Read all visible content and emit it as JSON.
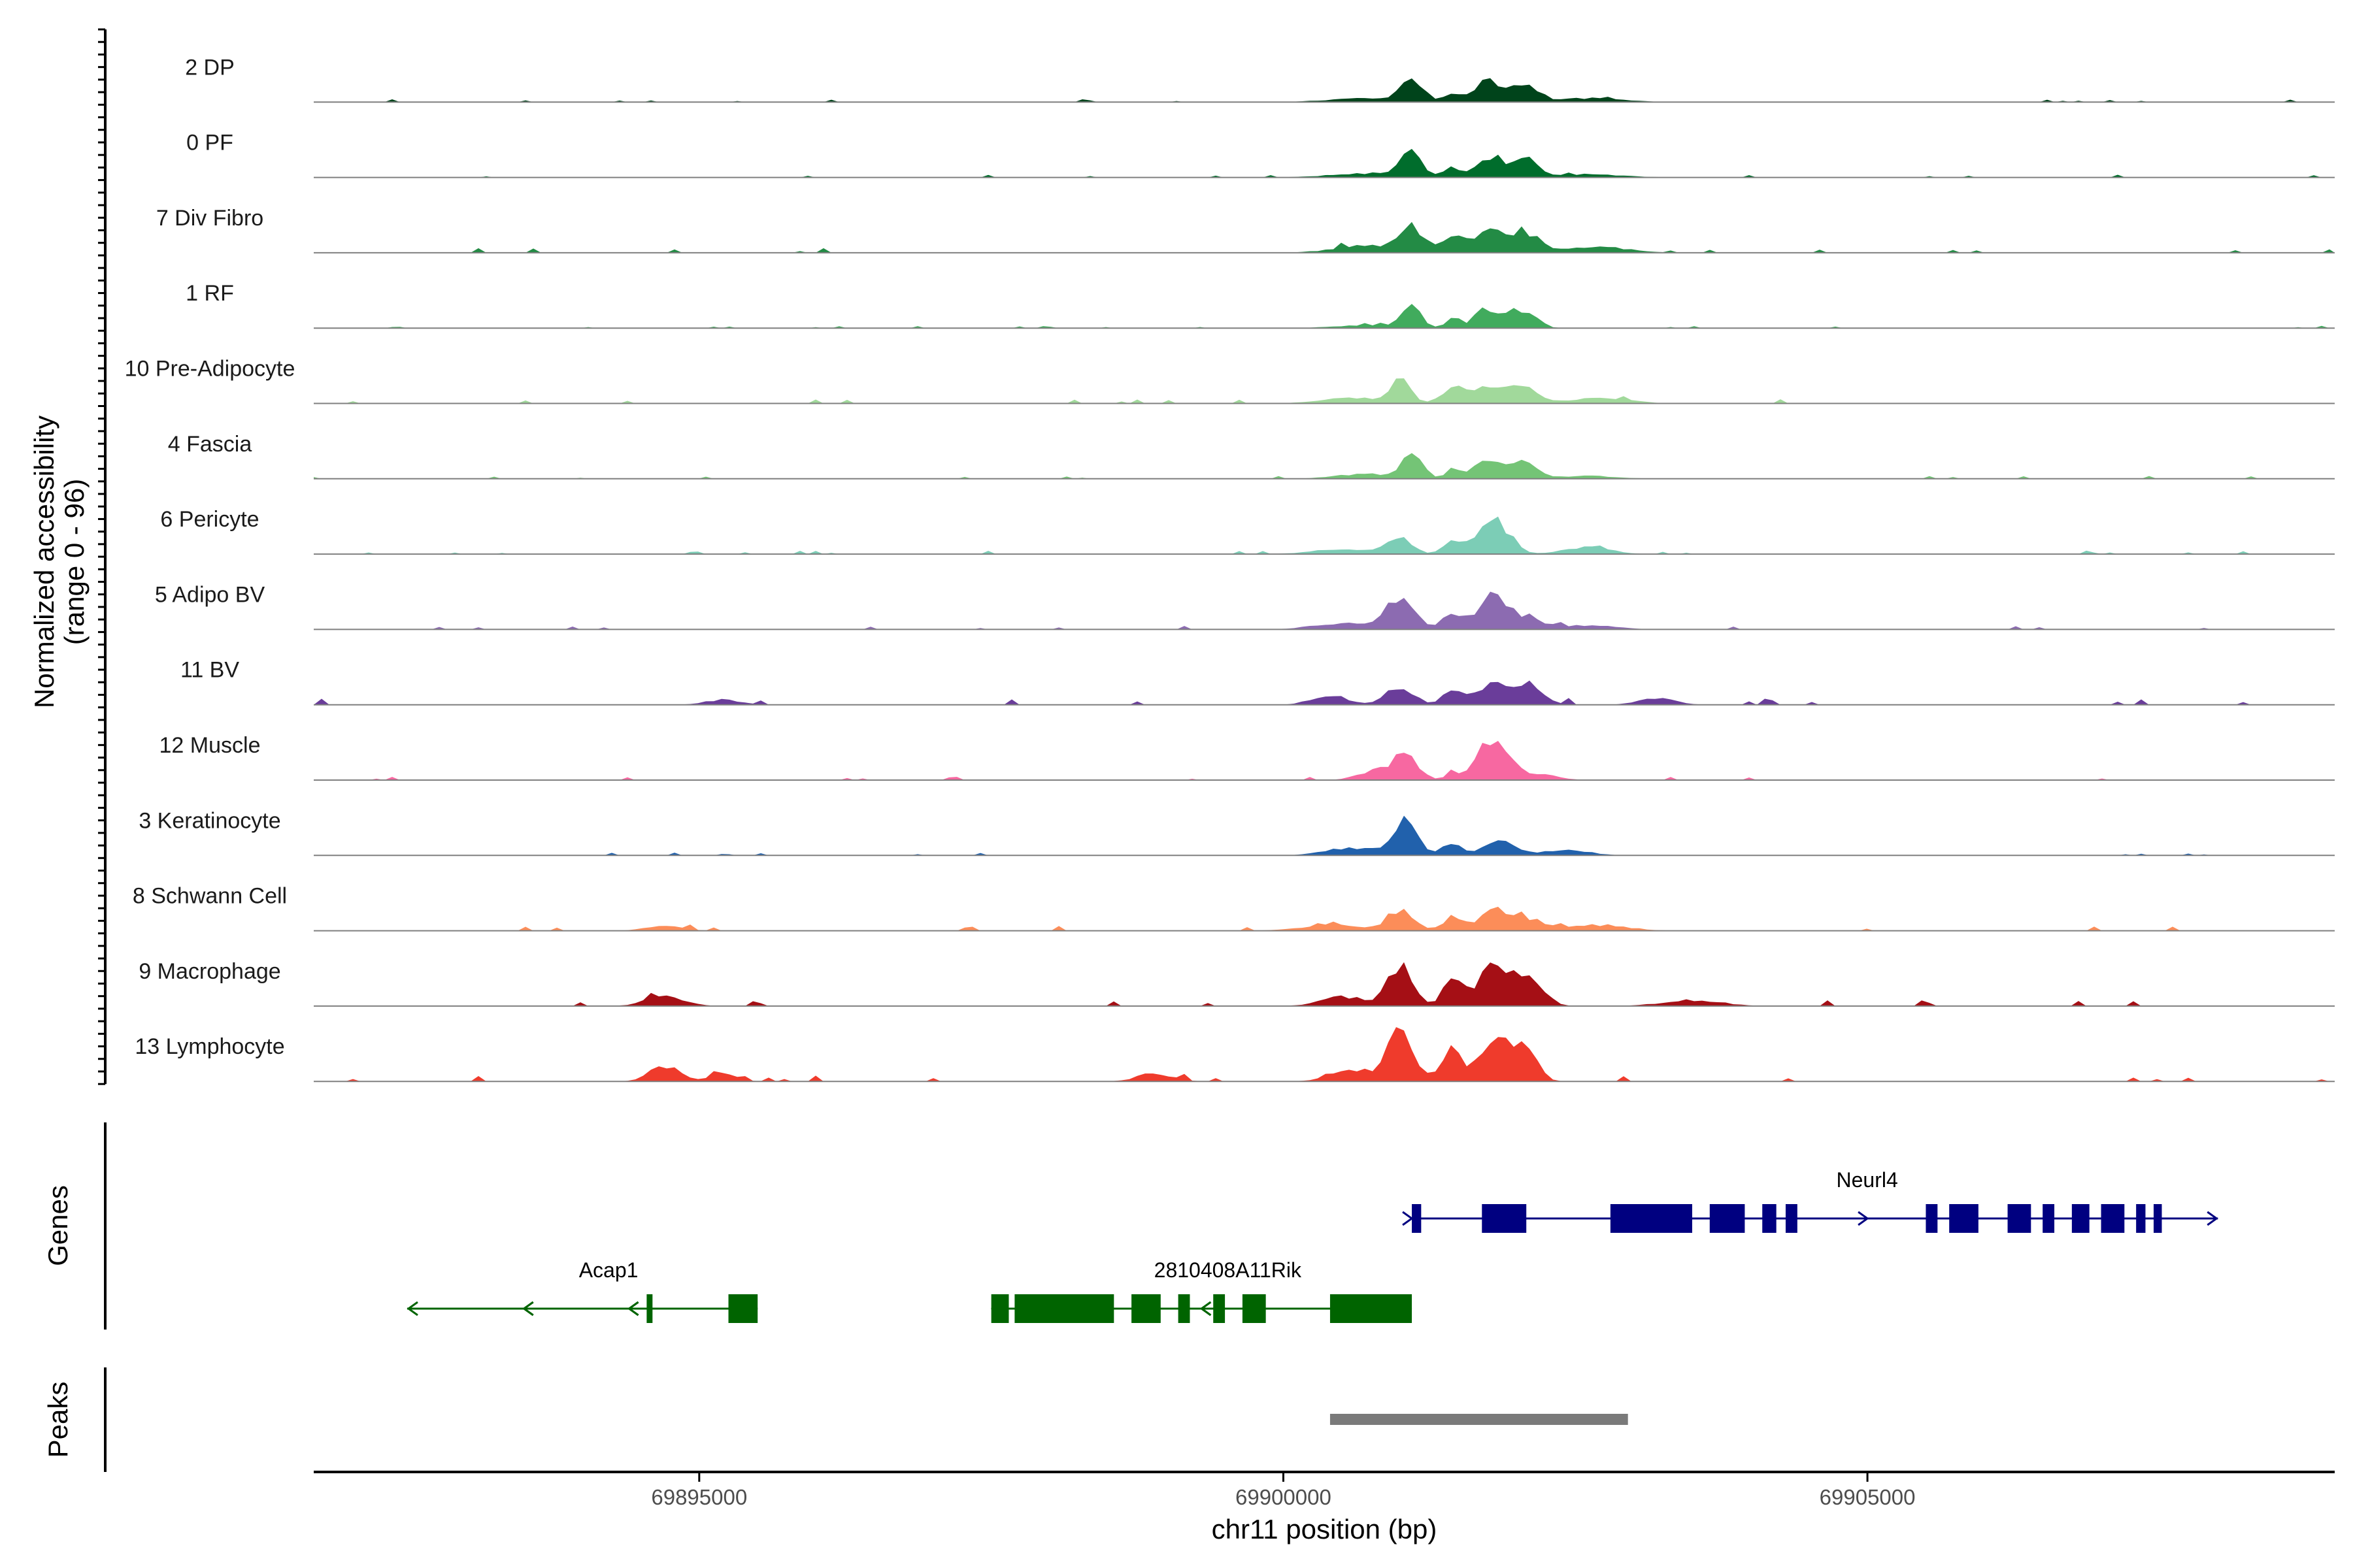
{
  "chart_data": {
    "type": "area",
    "title": "",
    "ylabel": "Normalized accessibility",
    "ylabel_range": "(range 0 - 96)",
    "xlabel": "chr11 position (bp)",
    "x_range": [
      69891700,
      69909000
    ],
    "ylim": [
      0,
      96
    ],
    "x_ticks": [
      {
        "value": 69895000,
        "label": "69895000"
      },
      {
        "value": 69900000,
        "label": "69900000"
      },
      {
        "value": 69905000,
        "label": "69905000"
      }
    ],
    "peak_centers": [
      69901100,
      69901650,
      69901800,
      69902100
    ],
    "series": [
      {
        "name": "2 DP",
        "color": "#00441b",
        "peaks": [
          [
            69901100,
            24,
            90
          ],
          [
            69901450,
            10,
            60
          ],
          [
            69901750,
            22,
            110
          ],
          [
            69902050,
            18,
            110
          ],
          [
            69900700,
            4,
            300
          ],
          [
            69902600,
            4,
            300
          ]
        ],
        "noise": 1.0
      },
      {
        "name": "0 PF",
        "color": "#006d2c",
        "peaks": [
          [
            69901100,
            25,
            90
          ],
          [
            69901450,
            10,
            60
          ],
          [
            69901750,
            22,
            110
          ],
          [
            69902050,
            20,
            110
          ],
          [
            69900700,
            4,
            300
          ],
          [
            69902600,
            3,
            300
          ]
        ],
        "noise": 1.0
      },
      {
        "name": "7 Div Fibro",
        "color": "#238b45",
        "peaks": [
          [
            69901100,
            26,
            100
          ],
          [
            69901450,
            18,
            100
          ],
          [
            69901750,
            25,
            110
          ],
          [
            69902050,
            22,
            130
          ],
          [
            69900700,
            8,
            250
          ],
          [
            69902700,
            6,
            250
          ]
        ],
        "noise": 1.6
      },
      {
        "name": "1 RF",
        "color": "#41ab5d",
        "peaks": [
          [
            69901100,
            24,
            80
          ],
          [
            69901450,
            10,
            60
          ],
          [
            69901750,
            20,
            110
          ],
          [
            69902050,
            19,
            110
          ],
          [
            69900700,
            3,
            250
          ]
        ],
        "noise": 0.8
      },
      {
        "name": "10 Pre-Adipocyte",
        "color": "#a1d99b",
        "peaks": [
          [
            69901000,
            22,
            90
          ],
          [
            69901450,
            18,
            90
          ],
          [
            69901750,
            20,
            110
          ],
          [
            69902050,
            18,
            110
          ],
          [
            69900600,
            6,
            250
          ],
          [
            69902700,
            6,
            250
          ]
        ],
        "noise": 2.0
      },
      {
        "name": "4 Fascia",
        "color": "#74c476",
        "peaks": [
          [
            69901100,
            24,
            90
          ],
          [
            69901450,
            10,
            60
          ],
          [
            69901750,
            18,
            120
          ],
          [
            69902050,
            16,
            110
          ],
          [
            69900700,
            5,
            250
          ],
          [
            69902600,
            3,
            250
          ]
        ],
        "noise": 1.0
      },
      {
        "name": "6 Pericyte",
        "color": "#7ccdb6",
        "peaks": [
          [
            69901000,
            18,
            100
          ],
          [
            69901450,
            14,
            80
          ],
          [
            69901800,
            34,
            130
          ],
          [
            69900500,
            5,
            250
          ],
          [
            69902600,
            7,
            200
          ]
        ],
        "noise": 1.2
      },
      {
        "name": "5 Adipo BV",
        "color": "#8c6bb1",
        "peaks": [
          [
            69901000,
            30,
            130
          ],
          [
            69901450,
            14,
            80
          ],
          [
            69901800,
            36,
            130
          ],
          [
            69902100,
            10,
            140
          ],
          [
            69900500,
            6,
            250
          ],
          [
            69902600,
            4,
            250
          ]
        ],
        "noise": 1.2
      },
      {
        "name": "11 BV",
        "color": "#6a3d9a",
        "peaks": [
          [
            69900400,
            10,
            150
          ],
          [
            69901000,
            20,
            110
          ],
          [
            69901450,
            16,
            80
          ],
          [
            69901800,
            22,
            130
          ],
          [
            69902100,
            16,
            130
          ],
          [
            69895200,
            5,
            150
          ],
          [
            69903200,
            7,
            150
          ]
        ],
        "noise": 2.4
      },
      {
        "name": "12 Muscle",
        "color": "#f768a1",
        "peaks": [
          [
            69900800,
            10,
            150
          ],
          [
            69901050,
            26,
            100
          ],
          [
            69901450,
            8,
            60
          ],
          [
            69901800,
            42,
            130
          ],
          [
            69902200,
            6,
            150
          ]
        ],
        "noise": 1.2
      },
      {
        "name": "3 Keratinocyte",
        "color": "#2161ac",
        "peaks": [
          [
            69900600,
            8,
            220
          ],
          [
            69901050,
            35,
            100
          ],
          [
            69901450,
            14,
            80
          ],
          [
            69901850,
            16,
            120
          ],
          [
            69902400,
            6,
            200
          ]
        ],
        "noise": 1.0
      },
      {
        "name": "8 Schwann Cell",
        "color": "#fc8d59",
        "peaks": [
          [
            69901000,
            22,
            110
          ],
          [
            69901450,
            14,
            80
          ],
          [
            69901800,
            20,
            130
          ],
          [
            69902100,
            12,
            130
          ],
          [
            69894700,
            5,
            150
          ],
          [
            69900400,
            6,
            250
          ],
          [
            69902700,
            6,
            250
          ]
        ],
        "noise": 1.8
      },
      {
        "name": "9 Macrophage",
        "color": "#a50f15",
        "peaks": [
          [
            69900500,
            10,
            180
          ],
          [
            69901000,
            40,
            110
          ],
          [
            69901450,
            26,
            80
          ],
          [
            69901800,
            45,
            130
          ],
          [
            69902100,
            30,
            120
          ],
          [
            69894700,
            10,
            160
          ],
          [
            69903500,
            6,
            250
          ]
        ],
        "noise": 2.0
      },
      {
        "name": "13 Lymphocyte",
        "color": "#ef3b2c",
        "peaks": [
          [
            69900600,
            12,
            180
          ],
          [
            69901000,
            55,
            100
          ],
          [
            69901450,
            34,
            90
          ],
          [
            69901800,
            48,
            110
          ],
          [
            69902050,
            36,
            110
          ],
          [
            69894700,
            16,
            120
          ],
          [
            69895200,
            8,
            120
          ],
          [
            69898900,
            8,
            150
          ]
        ],
        "noise": 2.0
      }
    ],
    "genes": [
      {
        "name": "Neurl4",
        "color": "#000080",
        "strand": "+",
        "start": 69901100,
        "end": 69908000,
        "row": 0,
        "exons": [
          [
            69901100,
            69901180
          ],
          [
            69901700,
            69902080
          ],
          [
            69902800,
            69903500
          ],
          [
            69903650,
            69903950
          ],
          [
            69904100,
            69904220
          ],
          [
            69904300,
            69904400
          ],
          [
            69905500,
            69905600
          ],
          [
            69905700,
            69905950
          ],
          [
            69906200,
            69906400
          ],
          [
            69906500,
            69906600
          ],
          [
            69906750,
            69906900
          ],
          [
            69907000,
            69907200
          ],
          [
            69907300,
            69907380
          ],
          [
            69907450,
            69907520
          ]
        ]
      },
      {
        "name": "Acap1",
        "color": "#006400",
        "strand": "-",
        "start": 69892500,
        "end": 69895500,
        "row": 1,
        "exons": [
          [
            69894550,
            69894600
          ],
          [
            69895250,
            69895500
          ]
        ]
      },
      {
        "name": "2810408A11Rik",
        "color": "#006400",
        "strand": "-",
        "start": 69897500,
        "end": 69901100,
        "row": 1,
        "exons": [
          [
            69897500,
            69897650
          ],
          [
            69897700,
            69898550
          ],
          [
            69898700,
            69898950
          ],
          [
            69899100,
            69899200
          ],
          [
            69899400,
            69899500
          ],
          [
            69899650,
            69899850
          ],
          [
            69900400,
            69901100
          ]
        ]
      }
    ],
    "peaks_track": [
      {
        "start": 69900400,
        "end": 69902950,
        "color": "#7a7a7a"
      }
    ],
    "genes_label": "Genes",
    "peaks_label": "Peaks"
  }
}
